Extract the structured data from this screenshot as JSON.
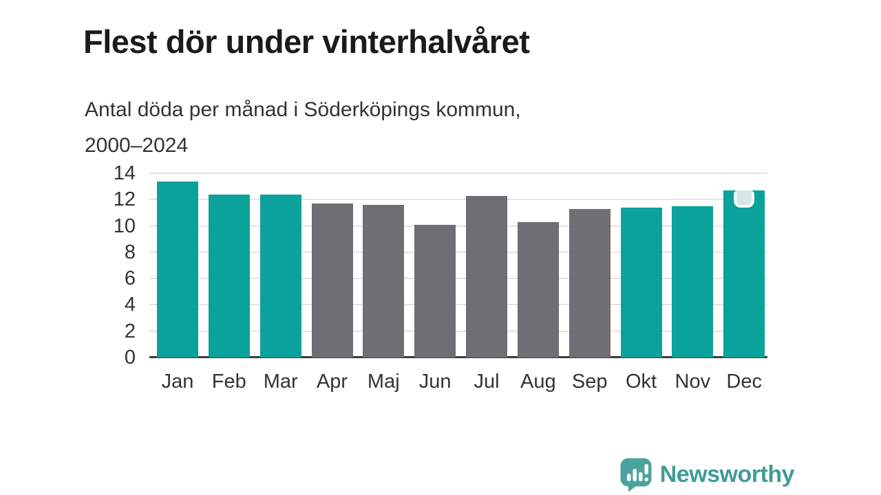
{
  "header": {
    "title": "Flest dör under vinterhalvåret",
    "subtitle": "Antal döda per månad i Söderköpings kommun,\n2000–2024"
  },
  "chart_data": {
    "type": "bar",
    "title": "Flest dör under vinterhalvåret",
    "subtitle": "Antal döda per månad i Söderköpings kommun, 2000–2024",
    "categories": [
      "Jan",
      "Feb",
      "Mar",
      "Apr",
      "Maj",
      "Jun",
      "Jul",
      "Aug",
      "Sep",
      "Okt",
      "Nov",
      "Dec"
    ],
    "values": [
      13.4,
      12.4,
      12.4,
      11.7,
      11.6,
      10.1,
      12.3,
      10.3,
      11.3,
      11.4,
      11.5,
      12.7
    ],
    "highlighted": [
      true,
      true,
      true,
      false,
      false,
      false,
      false,
      false,
      false,
      true,
      true,
      true
    ],
    "xlabel": "",
    "ylabel": "",
    "ylim": [
      0,
      14
    ],
    "yticks": [
      0,
      2,
      4,
      6,
      8,
      10,
      12,
      14
    ],
    "grid": true,
    "legend": "none",
    "marker_month": "Dec",
    "colors": {
      "highlight": "#0aa29a",
      "normal": "#6e6e73",
      "gridline": "#e3e3e3",
      "axis": "#3b3b3d",
      "marker_fill": "#d5e6e5"
    }
  },
  "branding": {
    "name": "Newsworthy",
    "text_color": "#3f9c96",
    "bubble_color": "#4aa49d",
    "icon": "newsworthy-speech-bubble-chart-icon"
  }
}
